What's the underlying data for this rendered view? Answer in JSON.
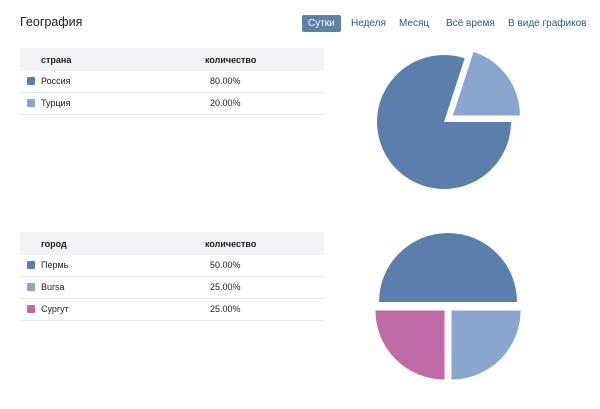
{
  "header": {
    "title": "География"
  },
  "tabs": [
    {
      "label": "Сутки",
      "active": true
    },
    {
      "label": "Неделя",
      "active": false
    },
    {
      "label": "Месяц",
      "active": false
    },
    {
      "label": "Всё время",
      "active": false
    },
    {
      "label": "В виде графиков",
      "active": false
    }
  ],
  "countries": {
    "col1": "страна",
    "col2": "количество",
    "rows": [
      {
        "name": "Россия",
        "value": "80.00%",
        "color": "#5a7fad"
      },
      {
        "name": "Турция",
        "value": "20.00%",
        "color": "#8aa6cf"
      }
    ]
  },
  "cities": {
    "col1": "город",
    "col2": "количество",
    "rows": [
      {
        "name": "Пермь",
        "value": "50.00%",
        "color": "#5a7fad"
      },
      {
        "name": "Bursa",
        "value": "25.00%",
        "color": "#8aa6cf"
      },
      {
        "name": "Сургут",
        "value": "25.00%",
        "color": "#c06aa8"
      }
    ]
  },
  "chart_data": [
    {
      "type": "pie",
      "categories": [
        "Россия",
        "Турция"
      ],
      "values": [
        80,
        20
      ],
      "colors": [
        "#5a7fad",
        "#8aa6cf"
      ],
      "exploded": [
        "Турция"
      ]
    },
    {
      "type": "pie",
      "categories": [
        "Пермь",
        "Bursa",
        "Сургут"
      ],
      "values": [
        50,
        25,
        25
      ],
      "colors": [
        "#5a7fad",
        "#8aa6cf",
        "#c06aa8"
      ],
      "exploded": [
        "Пермь",
        "Bursa",
        "Сургут"
      ]
    }
  ]
}
